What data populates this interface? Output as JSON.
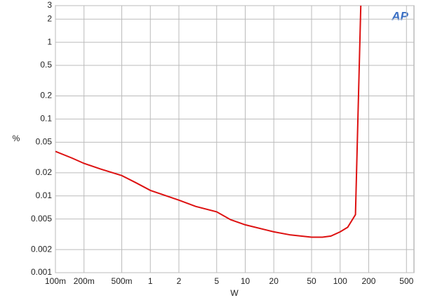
{
  "chart_data": {
    "type": "line",
    "logo": "AP",
    "x_label": "W",
    "y_label": "%",
    "x": [
      0.1,
      0.15,
      0.2,
      0.3,
      0.5,
      0.7,
      1,
      2,
      3,
      5,
      7,
      10,
      20,
      30,
      50,
      65,
      80,
      100,
      120,
      145,
      165
    ],
    "series": [
      {
        "color": "#dd1111",
        "values": [
          0.038,
          0.031,
          0.0265,
          0.0223,
          0.0184,
          0.0149,
          0.0118,
          0.0088,
          0.0073,
          0.0062,
          0.0049,
          0.0042,
          0.0034,
          0.0031,
          0.0029,
          0.0029,
          0.003,
          0.0034,
          0.0039,
          0.0057,
          3
        ]
      }
    ],
    "xlim": [
      0.1,
      600
    ],
    "ylim": [
      0.001,
      3
    ],
    "xscale": "log",
    "yscale": "log",
    "grid": true,
    "xticks": [
      {
        "value": 0.1,
        "label": "100m"
      },
      {
        "value": 0.2,
        "label": "200m"
      },
      {
        "value": 0.5,
        "label": "500m"
      },
      1,
      2,
      5,
      10,
      20,
      50,
      100,
      200,
      500
    ],
    "yticks": [
      0.001,
      0.002,
      0.005,
      0.01,
      0.02,
      0.05,
      0.1,
      0.2,
      0.5,
      1,
      2,
      3
    ]
  }
}
